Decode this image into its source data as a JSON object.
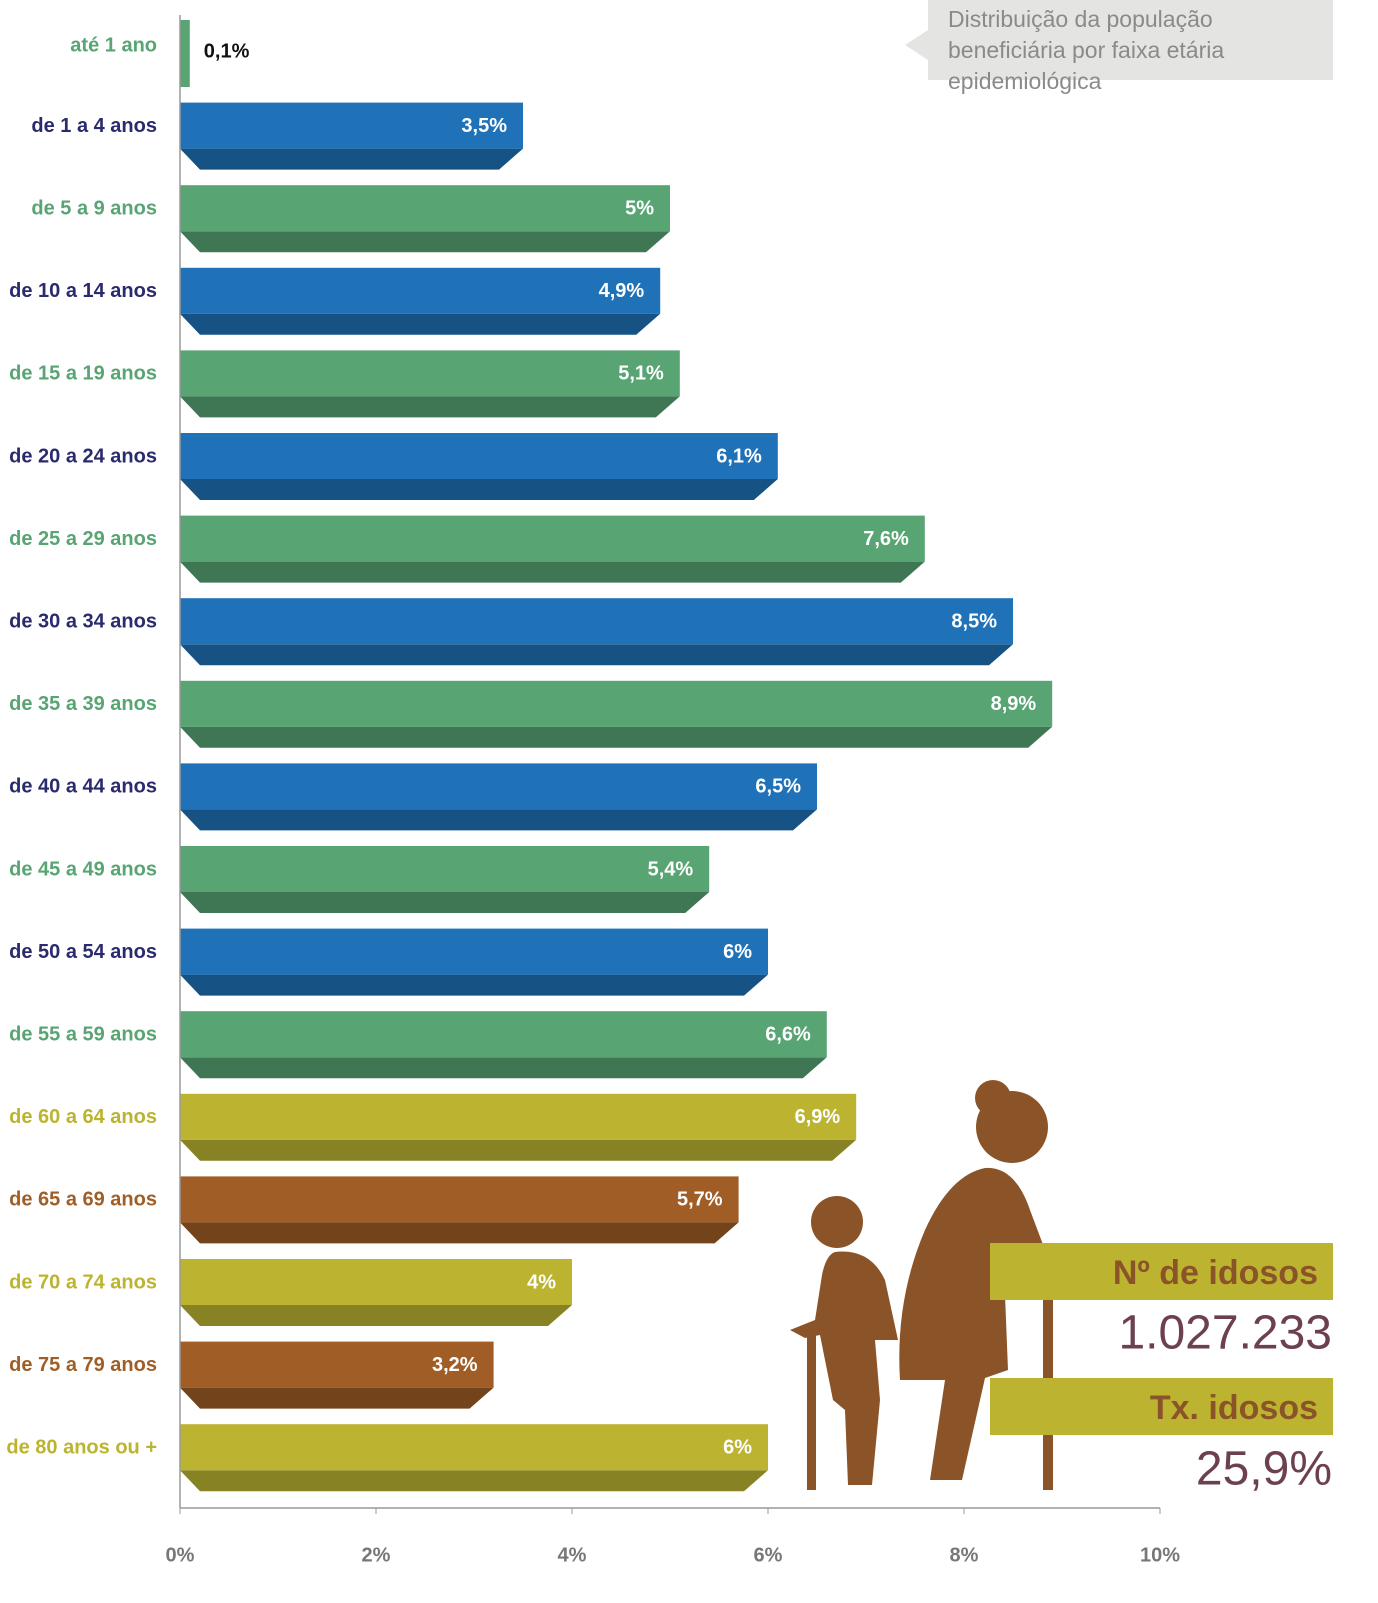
{
  "chart_data": {
    "type": "bar",
    "orientation": "horizontal",
    "note": "Distribuição da população beneficiária por faixa etária epidemiológica",
    "categories": [
      "até 1 ano",
      "de 1 a 4 anos",
      "de 5 a 9 anos",
      "de 10 a 14 anos",
      "de 15 a 19 anos",
      "de 20 a 24 anos",
      "de 25 a 29 anos",
      "de 30 a 34 anos",
      "de 35 a 39 anos",
      "de 40 a 44 anos",
      "de 45 a 49 anos",
      "de 50 a 54 anos",
      "de 55 a 59 anos",
      "de 60 a 64 anos",
      "de 65 a 69 anos",
      "de 70 a 74 anos",
      "de 75 a 79 anos",
      "de 80 anos ou +"
    ],
    "values": [
      0.1,
      3.5,
      5,
      4.9,
      5.1,
      6.1,
      7.6,
      8.5,
      8.9,
      6.5,
      5.4,
      6,
      6.6,
      6.9,
      5.7,
      4,
      3.2,
      6
    ],
    "value_labels": [
      "0,1%",
      "3,5%",
      "5%",
      "4,9%",
      "5,1%",
      "6,1%",
      "7,6%",
      "8,5%",
      "8,9%",
      "6,5%",
      "5,4%",
      "6%",
      "6,6%",
      "6,9%",
      "5,7%",
      "4%",
      "3,2%",
      "6%"
    ],
    "colors": [
      "#58a473",
      "#1f72b8",
      "#58a473",
      "#1f72b8",
      "#58a473",
      "#1f72b8",
      "#58a473",
      "#1f72b8",
      "#58a473",
      "#1f72b8",
      "#58a473",
      "#1f72b8",
      "#58a473",
      "#bcb431",
      "#a05e26",
      "#bcb431",
      "#a05e26",
      "#bcb431"
    ],
    "label_colors": [
      "#58a473",
      "#2a2a6e",
      "#58a473",
      "#2a2a6e",
      "#58a473",
      "#2a2a6e",
      "#58a473",
      "#2a2a6e",
      "#58a473",
      "#2a2a6e",
      "#58a473",
      "#2a2a6e",
      "#58a473",
      "#bcb431",
      "#a05e26",
      "#bcb431",
      "#a05e26",
      "#bcb431"
    ],
    "xlim": [
      0,
      10
    ],
    "xticks": [
      {
        "value": 0,
        "label": "0%"
      },
      {
        "value": 2,
        "label": "2%"
      },
      {
        "value": 4,
        "label": "4%"
      },
      {
        "value": 6,
        "label": "6%"
      },
      {
        "value": 8,
        "label": "8%"
      },
      {
        "value": 10,
        "label": "10%"
      }
    ],
    "annotations": [
      {
        "label": "Nº de idosos",
        "value": "1.027.233"
      },
      {
        "label": "Tx. idosos",
        "value": "25,9%"
      }
    ]
  }
}
